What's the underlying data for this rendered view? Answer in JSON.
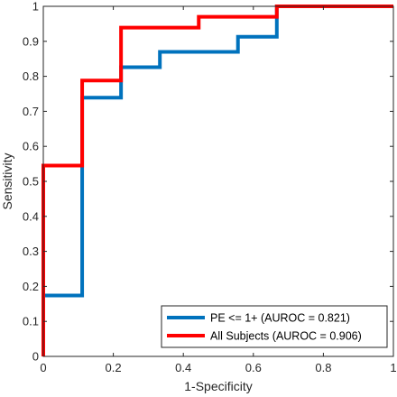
{
  "chart_data": {
    "type": "line",
    "step": true,
    "xlabel": "1-Specificity",
    "ylabel": "Sensitivity",
    "xlim": [
      0,
      1
    ],
    "ylim": [
      0,
      1
    ],
    "xticks": [
      "0",
      "0.2",
      "0.4",
      "0.6",
      "0.8",
      "1"
    ],
    "yticks": [
      "0",
      "0.1",
      "0.2",
      "0.3",
      "0.4",
      "0.5",
      "0.6",
      "0.7",
      "0.8",
      "0.9",
      "1"
    ],
    "grid": false,
    "legend_position": "bottom-right",
    "series": [
      {
        "name": "PE <= 1+ (AUROC = 0.821)",
        "color": "#0072BD",
        "x": [
          0,
          0,
          0.111,
          0.111,
          0.222,
          0.222,
          0.333,
          0.333,
          0.556,
          0.556,
          0.667,
          0.667,
          1
        ],
        "y": [
          0,
          0.174,
          0.174,
          0.739,
          0.739,
          0.826,
          0.826,
          0.87,
          0.87,
          0.913,
          0.913,
          1,
          1
        ]
      },
      {
        "name": "All Subjects (AUROC = 0.906)",
        "color": "#FF0000",
        "x": [
          0,
          0,
          0.111,
          0.111,
          0.222,
          0.222,
          0.444,
          0.444,
          0.667,
          0.667,
          1
        ],
        "y": [
          0,
          0.545,
          0.545,
          0.788,
          0.788,
          0.939,
          0.939,
          0.97,
          0.97,
          1,
          1
        ]
      }
    ]
  }
}
